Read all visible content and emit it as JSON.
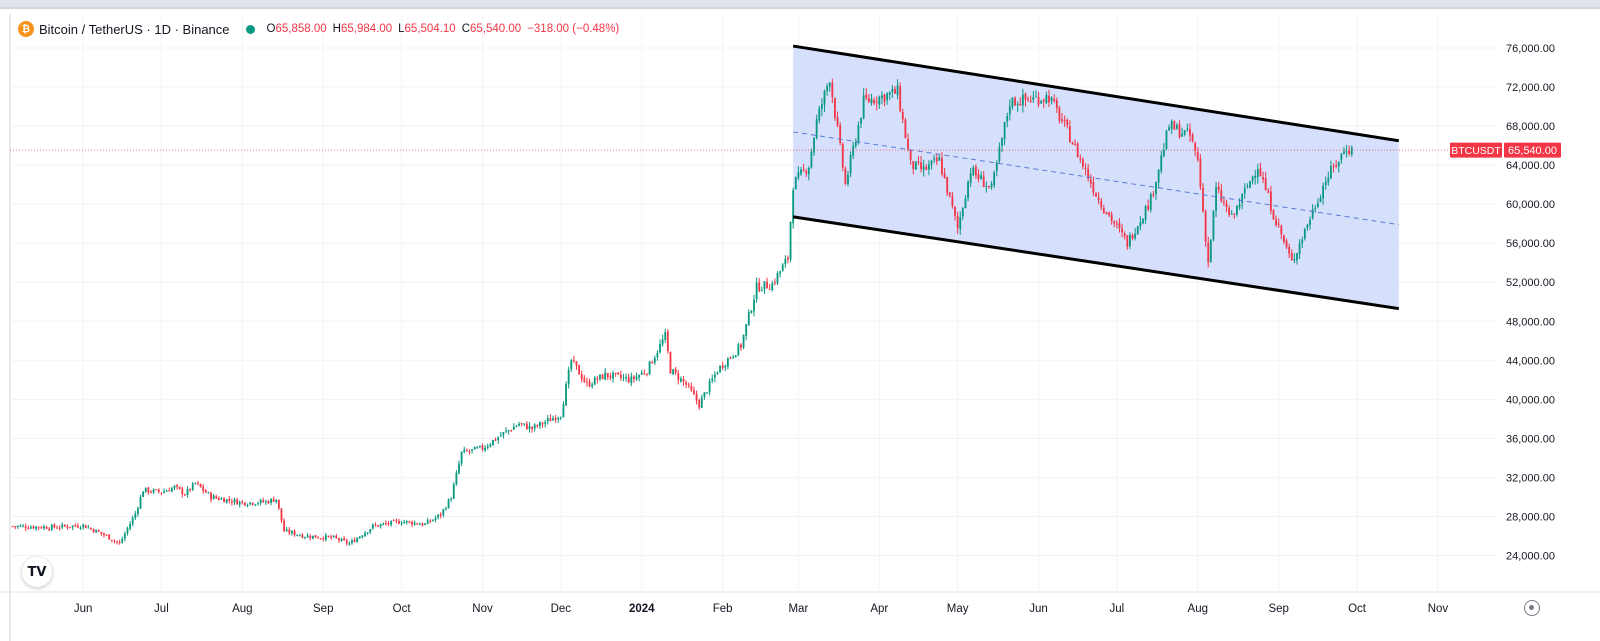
{
  "header": {
    "symbol": "Bitcoin / TetherUS · 1D · Binance",
    "open_key": "O",
    "open": "65,858.00",
    "high_key": "H",
    "high": "65,984.00",
    "low_key": "L",
    "low": "65,504.10",
    "close_key": "C",
    "close": "65,540.00",
    "change": "−318.00 (−0.48%)"
  },
  "price_tag": {
    "symbol": "BTCUSDT",
    "value": "65,540.00",
    "price": 65540
  },
  "colors": {
    "up": "#089981",
    "down": "#f23645",
    "channel_fill": "#d4ddfc",
    "channel_line": "#000000",
    "midline": "#5b7bd5",
    "grid": "#f0f3fa"
  },
  "icons": {
    "symbol": "bitcoin-icon",
    "logo": "tradingview-logo-icon",
    "settings": "gear-icon"
  },
  "chart_data": {
    "type": "candlestick",
    "title": "Bitcoin / TetherUS · 1D · Binance",
    "x_tick_labels": [
      "Jun",
      "Jul",
      "Aug",
      "Sep",
      "Oct",
      "Nov",
      "Dec",
      "2024",
      "Feb",
      "Mar",
      "Apr",
      "May",
      "Jun",
      "Jul",
      "Aug",
      "Sep",
      "Oct",
      "Nov"
    ],
    "y_tick_labels": [
      "76,000.00",
      "72,000.00",
      "68,000.00",
      "64,000.00",
      "60,000.00",
      "56,000.00",
      "52,000.00",
      "48,000.00",
      "44,000.00",
      "40,000.00",
      "36,000.00",
      "32,000.00",
      "28,000.00",
      "24,000.00"
    ],
    "y_ticks": [
      76000,
      72000,
      68000,
      64000,
      60000,
      56000,
      52000,
      48000,
      44000,
      40000,
      36000,
      32000,
      28000,
      24000
    ],
    "ylim": [
      21500,
      78300
    ],
    "x_range": [
      "2023-05-04",
      "2024-11-24"
    ],
    "close_path": [
      [
        "2023-05-05",
        27000
      ],
      [
        "2023-05-20",
        26900
      ],
      [
        "2023-06-01",
        27100
      ],
      [
        "2023-06-10",
        26000
      ],
      [
        "2023-06-15",
        25200
      ],
      [
        "2023-06-21",
        28300
      ],
      [
        "2023-06-24",
        30700
      ],
      [
        "2023-07-01",
        30500
      ],
      [
        "2023-07-06",
        31000
      ],
      [
        "2023-07-10",
        30300
      ],
      [
        "2023-07-14",
        31400
      ],
      [
        "2023-07-20",
        30000
      ],
      [
        "2023-08-01",
        29400
      ],
      [
        "2023-08-10",
        29500
      ],
      [
        "2023-08-14",
        29800
      ],
      [
        "2023-08-17",
        26500
      ],
      [
        "2023-08-25",
        26000
      ],
      [
        "2023-09-05",
        25800
      ],
      [
        "2023-09-11",
        25200
      ],
      [
        "2023-09-20",
        27000
      ],
      [
        "2023-10-01",
        27500
      ],
      [
        "2023-10-10",
        27200
      ],
      [
        "2023-10-16",
        28200
      ],
      [
        "2023-10-20",
        30000
      ],
      [
        "2023-10-24",
        34500
      ],
      [
        "2023-11-01",
        35000
      ],
      [
        "2023-11-09",
        36500
      ],
      [
        "2023-11-15",
        37500
      ],
      [
        "2023-11-20",
        37000
      ],
      [
        "2023-12-01",
        38500
      ],
      [
        "2023-12-05",
        44000
      ],
      [
        "2023-12-11",
        41500
      ],
      [
        "2023-12-18",
        42500
      ],
      [
        "2023-12-28",
        42000
      ],
      [
        "2024-01-03",
        43000
      ],
      [
        "2024-01-10",
        46500
      ],
      [
        "2024-01-12",
        43000
      ],
      [
        "2024-01-18",
        41500
      ],
      [
        "2024-01-23",
        39500
      ],
      [
        "2024-01-30",
        43000
      ],
      [
        "2024-02-08",
        45500
      ],
      [
        "2024-02-14",
        51500
      ],
      [
        "2024-02-20",
        51800
      ],
      [
        "2024-02-26",
        54500
      ],
      [
        "2024-02-28",
        62000
      ],
      [
        "2024-03-05",
        64000
      ],
      [
        "2024-03-08",
        68500
      ],
      [
        "2024-03-13",
        73000
      ],
      [
        "2024-03-19",
        62000
      ],
      [
        "2024-03-26",
        70500
      ],
      [
        "2024-04-08",
        71500
      ],
      [
        "2024-04-13",
        64000
      ],
      [
        "2024-04-18",
        63500
      ],
      [
        "2024-04-24",
        64500
      ],
      [
        "2024-05-01",
        57500
      ],
      [
        "2024-05-06",
        63500
      ],
      [
        "2024-05-14",
        61500
      ],
      [
        "2024-05-21",
        70500
      ],
      [
        "2024-06-05",
        71000
      ],
      [
        "2024-06-12",
        67500
      ],
      [
        "2024-06-24",
        60500
      ],
      [
        "2024-07-05",
        56000
      ],
      [
        "2024-07-14",
        60500
      ],
      [
        "2024-07-21",
        68000
      ],
      [
        "2024-07-29",
        67000
      ],
      [
        "2024-08-01",
        64500
      ],
      [
        "2024-08-05",
        54000
      ],
      [
        "2024-08-08",
        61500
      ],
      [
        "2024-08-14",
        58500
      ],
      [
        "2024-08-24",
        64000
      ],
      [
        "2024-08-30",
        59000
      ],
      [
        "2024-09-06",
        54000
      ],
      [
        "2024-09-12",
        58000
      ],
      [
        "2024-09-19",
        62500
      ],
      [
        "2024-09-27",
        65800
      ],
      [
        "2024-09-29",
        65540
      ]
    ],
    "annotations": [
      {
        "type": "trendline",
        "from": [
          "2024-02-28",
          76200
        ],
        "to": [
          "2024-10-17",
          66500
        ]
      },
      {
        "type": "trendline",
        "from": [
          "2024-02-28",
          58700
        ],
        "to": [
          "2024-10-17",
          49300
        ]
      },
      {
        "type": "dashed-midline",
        "from": [
          "2024-02-28",
          67400
        ],
        "to": [
          "2024-10-17",
          57900
        ]
      }
    ],
    "last_price": 65540,
    "grid": true
  }
}
